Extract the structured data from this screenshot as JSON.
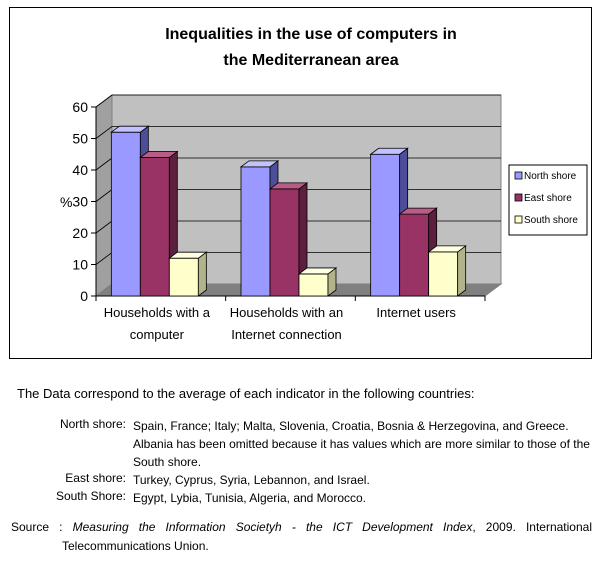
{
  "chart_data": {
    "type": "bar",
    "title_line1": "Inequalities in the use of computers in",
    "title_line2": "the Mediterranean area",
    "ylabel": "%",
    "ylim": [
      0,
      60
    ],
    "yticks": [
      "0",
      "10",
      "20",
      "30",
      "40",
      "50",
      "60"
    ],
    "categories": [
      [
        "Households with a",
        "computer"
      ],
      [
        "Households with an",
        "Internet connection"
      ],
      [
        "Internet users"
      ]
    ],
    "series": [
      {
        "name": "North shore",
        "values": [
          52,
          41,
          45
        ],
        "color": "#9999ff",
        "dark": "#4d4d99",
        "top": "#c2c2ff"
      },
      {
        "name": "East shore",
        "values": [
          44,
          34,
          26
        ],
        "color": "#993366",
        "dark": "#5c1f3d",
        "top": "#b85c88"
      },
      {
        "name": "South shore",
        "values": [
          12,
          7,
          14
        ],
        "color": "#ffffcc",
        "dark": "#b3b38a",
        "top": "#ffffe6"
      }
    ],
    "legend_position": "right",
    "grid": true
  },
  "notes": {
    "intro": "The Data correspond to the average of each indicator in the following countries:",
    "north_label": "North shore:",
    "north_text": "Spain, France; Italy; Malta, Slovenia, Croatia, Bosnia & Herzegovina, and Greece. Albania has been omitted because it has values which are more similar to those of the South shore.",
    "east_label": "East shore:",
    "east_text": "Turkey, Cyprus, Syria, Lebannon, and Israel.",
    "south_label": "South Shore:",
    "south_text": "Egypt, Lybia, Tunisia, Algeria, and Morocco.",
    "source_label": "Source :",
    "source_title": "Measuring the Information Societyh - the ICT Development Index",
    "source_rest": ", 2009. International Telecommunications Union."
  }
}
